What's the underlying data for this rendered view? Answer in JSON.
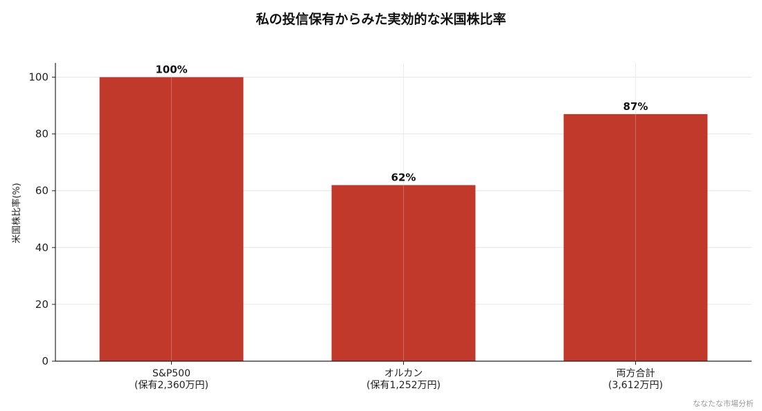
{
  "chart_data": {
    "type": "bar",
    "title": "私の投信保有からみた実効的な米国株比率",
    "ylabel": "米国株比率(%)",
    "xlabel": "",
    "ylim": [
      0,
      105
    ],
    "yticks": [
      0,
      20,
      40,
      60,
      80,
      100
    ],
    "grid": true,
    "bar_color": "#c0392b",
    "categories": [
      {
        "line1": "S&P500",
        "line2": "(保有2,360万円)"
      },
      {
        "line1": "オルカン",
        "line2": "(保有1,252万円)"
      },
      {
        "line1": "両方合計",
        "line2": "(3,612万円)"
      }
    ],
    "values": [
      100,
      62,
      87
    ],
    "value_labels": [
      "100%",
      "62%",
      "87%"
    ]
  },
  "credit": "ななたな市場分析"
}
